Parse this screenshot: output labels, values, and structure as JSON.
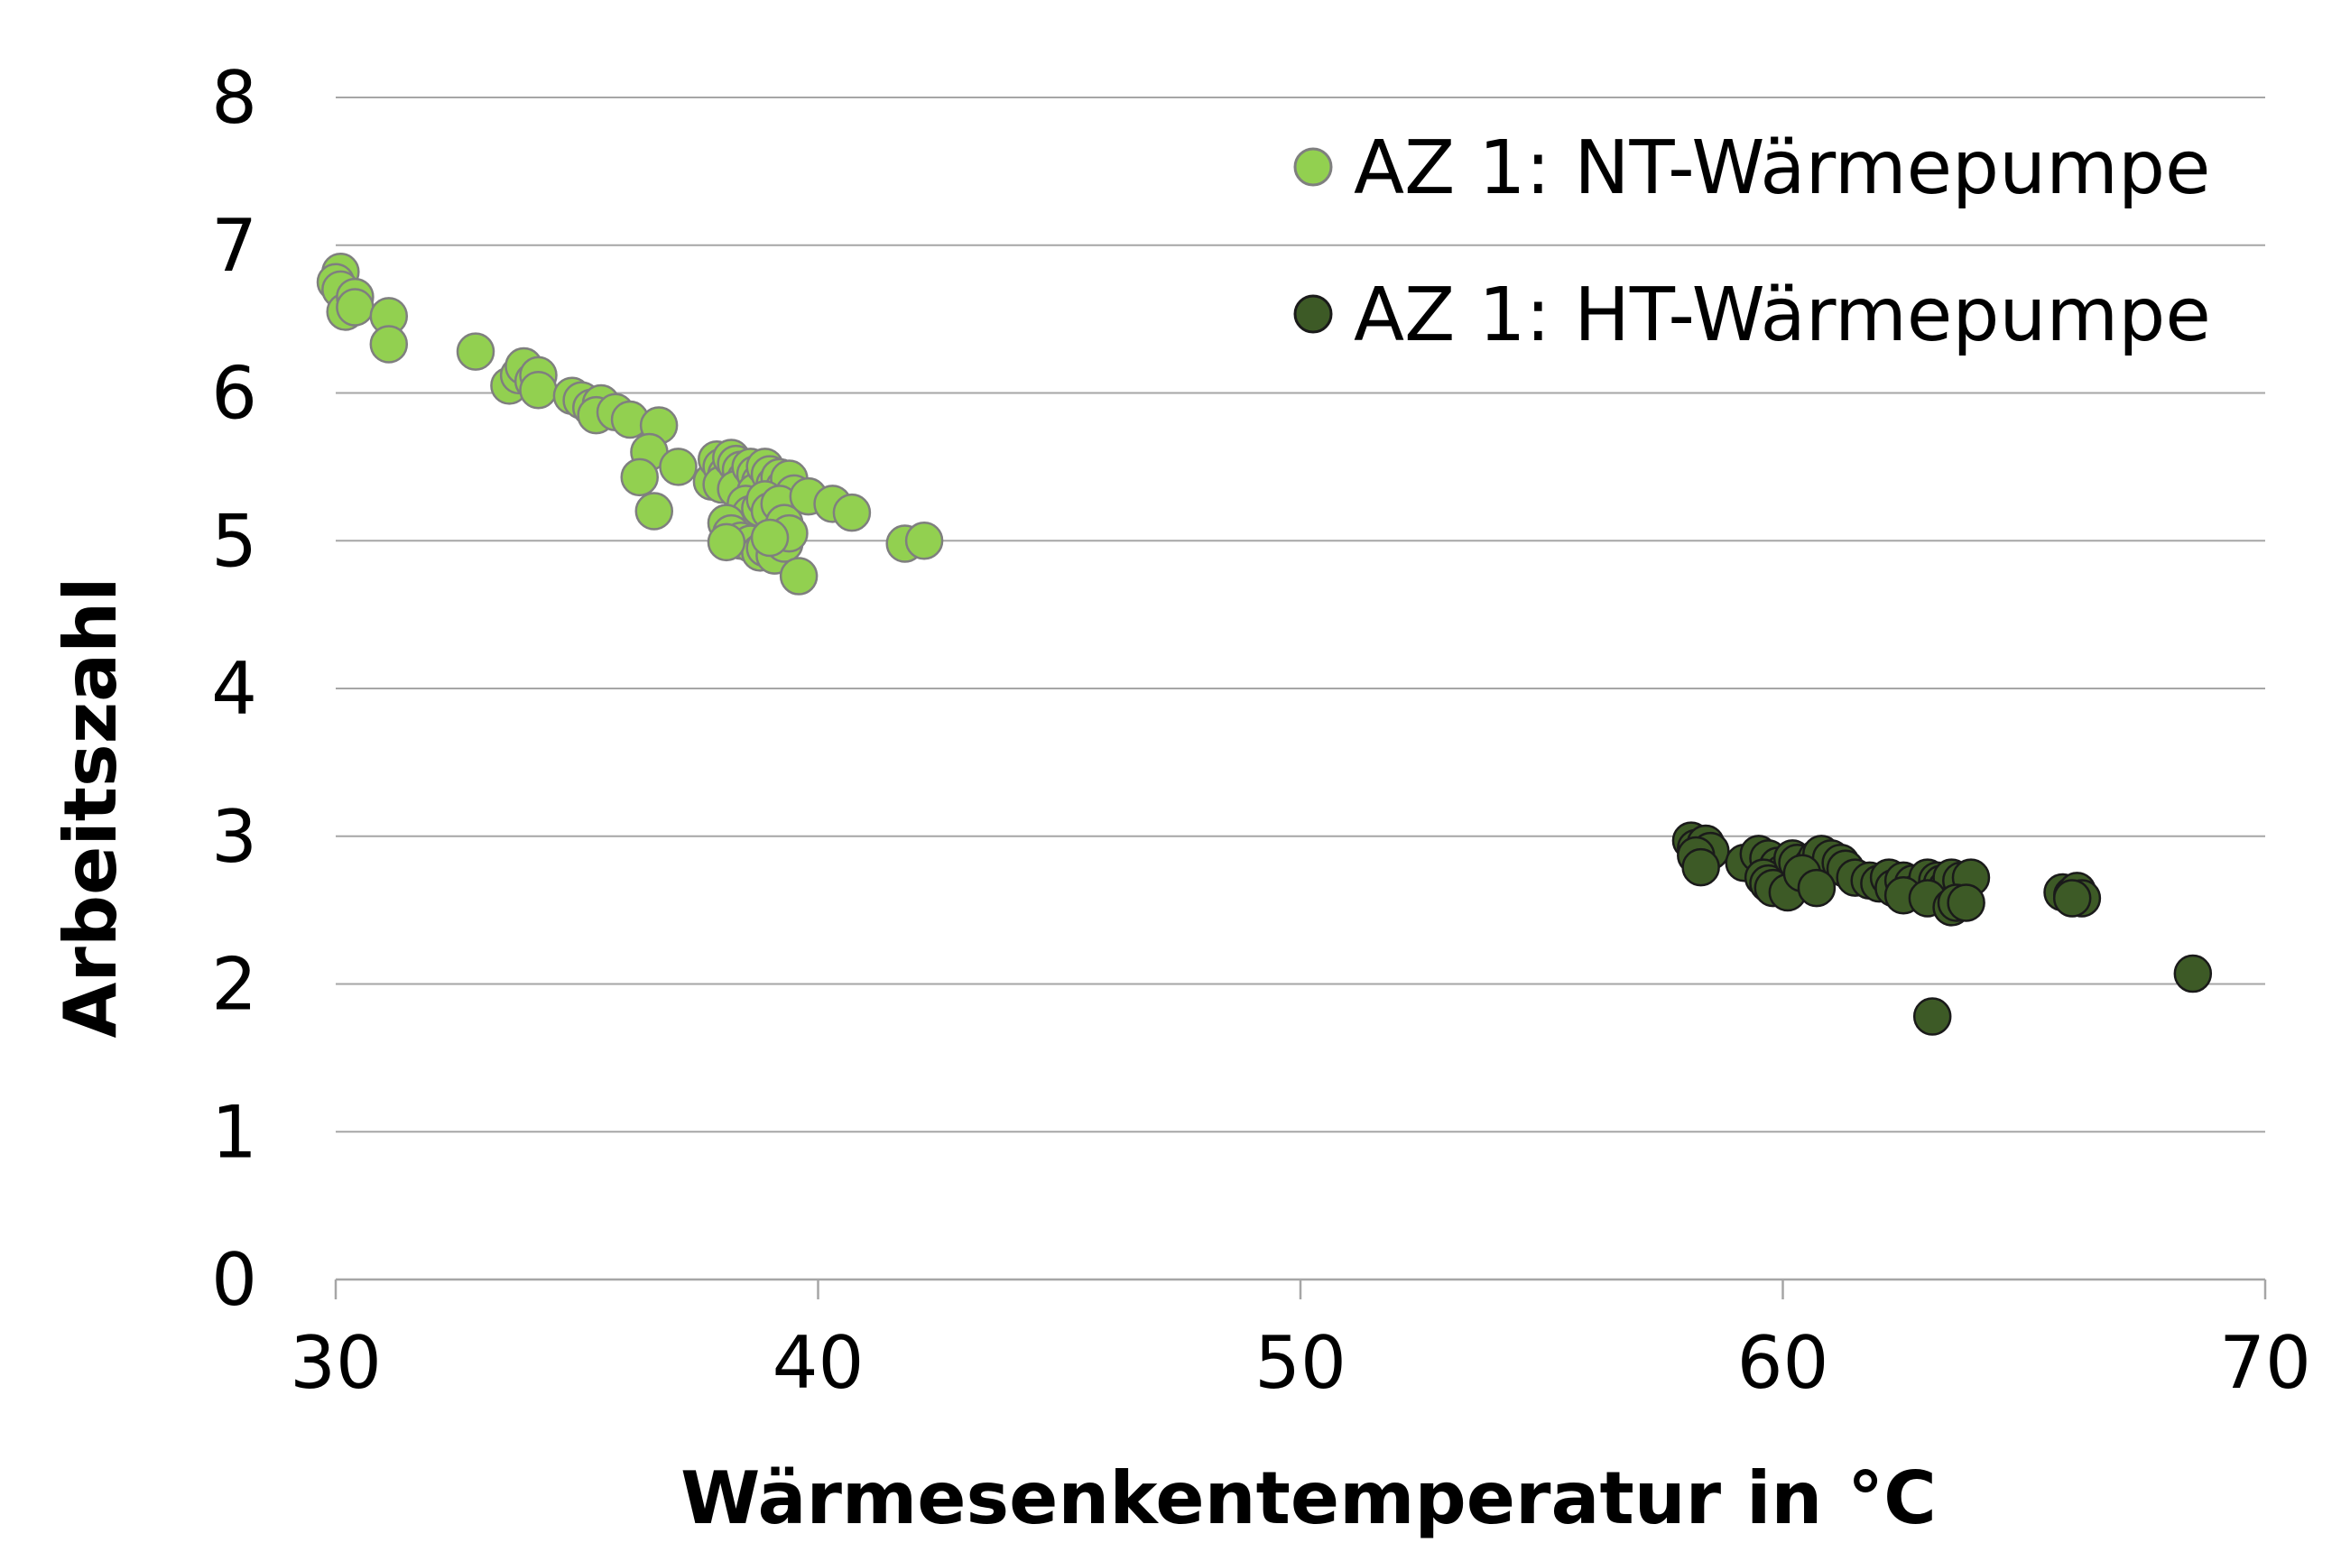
{
  "chart_data": {
    "type": "scatter",
    "xlabel": "Wärmesenkentemperatur in °C",
    "ylabel": "Arbeitszahl",
    "xlim": [
      30,
      70
    ],
    "ylim": [
      0,
      8
    ],
    "xticks": [
      "30",
      "40",
      "50",
      "60",
      "70"
    ],
    "yticks": [
      "0",
      "1",
      "2",
      "3",
      "4",
      "5",
      "6",
      "7",
      "8"
    ],
    "grid": "horizontal",
    "legend_position": "top-right",
    "series": [
      {
        "name": "AZ 1: NT-Wärmepumpe",
        "color": "#92d050",
        "edge_color": "#7f7f7f",
        "points": [
          [
            30.1,
            6.82
          ],
          [
            30.0,
            6.75
          ],
          [
            30.1,
            6.7
          ],
          [
            30.2,
            6.55
          ],
          [
            30.4,
            6.65
          ],
          [
            30.4,
            6.58
          ],
          [
            31.1,
            6.52
          ],
          [
            31.1,
            6.33
          ],
          [
            32.9,
            6.28
          ],
          [
            33.6,
            6.05
          ],
          [
            33.8,
            6.12
          ],
          [
            33.9,
            6.18
          ],
          [
            34.1,
            6.08
          ],
          [
            34.2,
            6.12
          ],
          [
            34.2,
            6.02
          ],
          [
            34.9,
            5.98
          ],
          [
            35.1,
            5.95
          ],
          [
            35.3,
            5.9
          ],
          [
            35.5,
            5.93
          ],
          [
            35.4,
            5.85
          ],
          [
            35.8,
            5.87
          ],
          [
            36.1,
            5.82
          ],
          [
            36.7,
            5.78
          ],
          [
            36.5,
            5.6
          ],
          [
            37.1,
            5.5
          ],
          [
            36.3,
            5.43
          ],
          [
            36.6,
            5.2
          ],
          [
            37.8,
            5.4
          ],
          [
            37.9,
            5.55
          ],
          [
            38.0,
            5.5
          ],
          [
            38.1,
            5.45
          ],
          [
            38.0,
            5.38
          ],
          [
            38.2,
            5.56
          ],
          [
            38.3,
            5.52
          ],
          [
            38.4,
            5.48
          ],
          [
            38.5,
            5.42
          ],
          [
            38.3,
            5.35
          ],
          [
            38.6,
            5.5
          ],
          [
            38.7,
            5.45
          ],
          [
            38.8,
            5.4
          ],
          [
            38.7,
            5.33
          ],
          [
            38.9,
            5.5
          ],
          [
            39.0,
            5.45
          ],
          [
            39.1,
            5.38
          ],
          [
            39.2,
            5.43
          ],
          [
            39.3,
            5.36
          ],
          [
            39.4,
            5.42
          ],
          [
            39.5,
            5.32
          ],
          [
            38.5,
            5.25
          ],
          [
            38.6,
            5.18
          ],
          [
            38.8,
            5.22
          ],
          [
            38.9,
            5.28
          ],
          [
            39.0,
            5.2
          ],
          [
            39.2,
            5.25
          ],
          [
            39.3,
            5.12
          ],
          [
            38.1,
            5.12
          ],
          [
            38.2,
            5.05
          ],
          [
            38.4,
            5.0
          ],
          [
            38.6,
            4.98
          ],
          [
            38.8,
            4.92
          ],
          [
            38.9,
            4.95
          ],
          [
            39.1,
            4.9
          ],
          [
            39.3,
            4.98
          ],
          [
            39.4,
            5.05
          ],
          [
            39.0,
            5.02
          ],
          [
            38.1,
            4.99
          ],
          [
            39.6,
            4.76
          ],
          [
            39.8,
            5.3
          ],
          [
            40.3,
            5.25
          ],
          [
            40.7,
            5.19
          ],
          [
            41.8,
            4.98
          ],
          [
            42.2,
            5.0
          ]
        ]
      },
      {
        "name": "AZ 1: HT-Wärmepumpe",
        "color": "#3d5a26",
        "edge_color": "#1a1a1a",
        "points": [
          [
            58.1,
            2.97
          ],
          [
            58.2,
            2.92
          ],
          [
            58.4,
            2.95
          ],
          [
            58.5,
            2.9
          ],
          [
            58.2,
            2.87
          ],
          [
            58.3,
            2.79
          ],
          [
            59.2,
            2.82
          ],
          [
            59.5,
            2.88
          ],
          [
            59.7,
            2.85
          ],
          [
            59.9,
            2.8
          ],
          [
            60.0,
            2.75
          ],
          [
            59.6,
            2.72
          ],
          [
            59.7,
            2.68
          ],
          [
            59.8,
            2.65
          ],
          [
            60.1,
            2.62
          ],
          [
            60.2,
            2.85
          ],
          [
            60.3,
            2.82
          ],
          [
            60.6,
            2.8
          ],
          [
            60.7,
            2.85
          ],
          [
            60.8,
            2.88
          ],
          [
            61.0,
            2.85
          ],
          [
            61.2,
            2.82
          ],
          [
            61.3,
            2.78
          ],
          [
            60.4,
            2.75
          ],
          [
            60.7,
            2.65
          ],
          [
            61.5,
            2.72
          ],
          [
            61.8,
            2.7
          ],
          [
            62.0,
            2.68
          ],
          [
            62.2,
            2.72
          ],
          [
            62.3,
            2.65
          ],
          [
            62.5,
            2.7
          ],
          [
            62.7,
            2.68
          ],
          [
            62.8,
            2.62
          ],
          [
            63.0,
            2.72
          ],
          [
            63.2,
            2.7
          ],
          [
            63.3,
            2.68
          ],
          [
            63.4,
            2.65
          ],
          [
            63.5,
            2.72
          ],
          [
            63.7,
            2.7
          ],
          [
            63.9,
            2.72
          ],
          [
            62.5,
            2.6
          ],
          [
            63.0,
            2.58
          ],
          [
            63.5,
            2.52
          ],
          [
            63.6,
            2.55
          ],
          [
            63.8,
            2.55
          ],
          [
            65.8,
            2.62
          ],
          [
            66.0,
            2.6
          ],
          [
            66.1,
            2.63
          ],
          [
            66.2,
            2.58
          ],
          [
            66.0,
            2.58
          ],
          [
            68.5,
            2.07
          ],
          [
            63.1,
            1.78
          ]
        ]
      }
    ]
  }
}
